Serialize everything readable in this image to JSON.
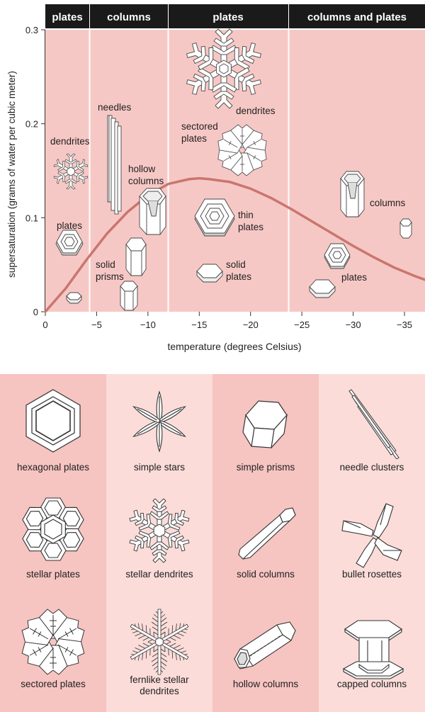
{
  "chart": {
    "ylabel": "supersaturation (grams of water per cubic meter)",
    "xlabel": "temperature (degrees Celsius)",
    "x_ticks": [
      "0",
      "−5",
      "−10",
      "−15",
      "−20",
      "−25",
      "−30",
      "−35"
    ],
    "y_ticks": [
      "0",
      "0.1",
      "0.2",
      "0.3"
    ],
    "bands": [
      "plates",
      "columns",
      "plates",
      "columns and plates"
    ],
    "annotations": {
      "dendrites_left": "dendrites",
      "plates_left": "plates",
      "needles": "needles",
      "hollow": "hollow",
      "columns_hollow": "columns",
      "solid": "solid",
      "prisms": "prisms",
      "dendrites_top": "dendrites",
      "sectored": "sectored",
      "plates_sectored": "plates",
      "thin": "thin",
      "plates_thin": "plates",
      "solid2": "solid",
      "plates_solid": "plates",
      "columns_right": "columns",
      "plates_right": "plates"
    }
  },
  "chart_data": {
    "type": "line",
    "xlabel": "temperature (degrees Celsius)",
    "ylabel": "supersaturation (grams of water per cubic meter)",
    "xlim": [
      0,
      -37
    ],
    "ylim": [
      0,
      0.3
    ],
    "x": [
      0,
      -2,
      -4,
      -6,
      -8,
      -10,
      -12,
      -14,
      -15,
      -16,
      -18,
      -20,
      -22,
      -24,
      -26,
      -28,
      -30,
      -32,
      -34,
      -36,
      -37
    ],
    "series": [
      {
        "values": [
          0.0,
          0.025,
          0.055,
          0.083,
          0.106,
          0.124,
          0.136,
          0.141,
          0.142,
          0.141,
          0.138,
          0.131,
          0.121,
          0.109,
          0.096,
          0.083,
          0.07,
          0.058,
          0.047,
          0.038,
          0.034
        ]
      }
    ],
    "bands": [
      {
        "from": 0,
        "to": -3,
        "label": "plates"
      },
      {
        "from": -3,
        "to": -8,
        "label": "columns"
      },
      {
        "from": -8,
        "to": -22,
        "label": "plates"
      },
      {
        "from": -22,
        "to": -37,
        "label": "columns and plates"
      }
    ]
  },
  "types": [
    {
      "label": "hexagonal plates",
      "icon": "hexagonal-plate-icon"
    },
    {
      "label": "simple stars",
      "icon": "simple-star-icon"
    },
    {
      "label": "simple prisms",
      "icon": "simple-prism-icon"
    },
    {
      "label": "needle clusters",
      "icon": "needle-cluster-icon"
    },
    {
      "label": "stellar plates",
      "icon": "stellar-plate-icon"
    },
    {
      "label": "stellar dendrites",
      "icon": "stellar-dendrite-icon"
    },
    {
      "label": "solid columns",
      "icon": "solid-column-icon"
    },
    {
      "label": "bullet rosettes",
      "icon": "bullet-rosette-icon"
    },
    {
      "label": "sectored plates",
      "icon": "sectored-plate-icon"
    },
    {
      "label_line1": "fernlike stellar",
      "label_line2": "dendrites",
      "icon": "fernlike-dendrite-icon"
    },
    {
      "label": "hollow columns",
      "icon": "hollow-column-icon"
    },
    {
      "label": "capped columns",
      "icon": "capped-column-icon"
    }
  ],
  "colors": {
    "band_dark": "#f5c6c3",
    "band_light": "#fbdcd9",
    "header": "#1a1a1a",
    "curve": "#c9766f"
  }
}
